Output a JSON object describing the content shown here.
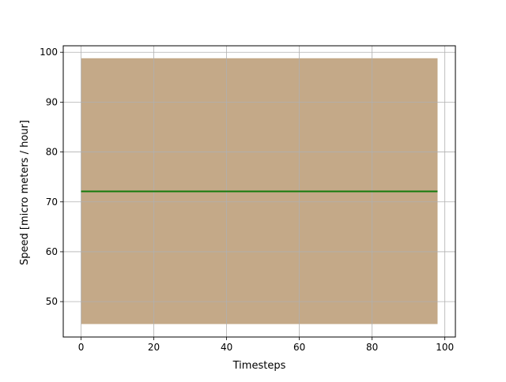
{
  "chart_data": {
    "type": "area",
    "title": "",
    "xlabel": "Timesteps",
    "ylabel": "Speed [micro meters / hour]",
    "xlim": [
      -4.9,
      102.9
    ],
    "ylim": [
      42.9,
      101.3
    ],
    "xticks": [
      0,
      20,
      40,
      60,
      80,
      100
    ],
    "yticks": [
      50,
      60,
      70,
      80,
      90,
      100
    ],
    "xtick_labels": [
      "0",
      "20",
      "40",
      "60",
      "80",
      "100"
    ],
    "ytick_labels": [
      "50",
      "60",
      "70",
      "80",
      "90",
      "100"
    ],
    "grid": true,
    "band": {
      "x": [
        0,
        98
      ],
      "lower": 45.5,
      "upper": 98.8,
      "color": "#c4a988"
    },
    "series": [
      {
        "x": [
          0,
          98
        ],
        "values": [
          72.1,
          72.1
        ],
        "color": "#137a0c"
      }
    ]
  }
}
